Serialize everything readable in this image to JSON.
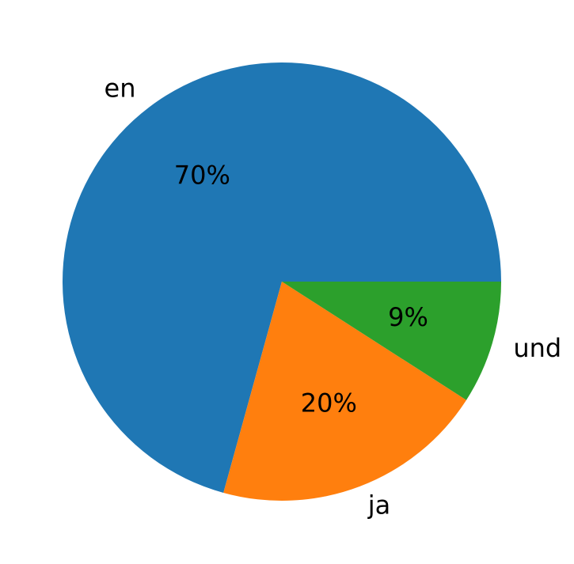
{
  "chart_data": {
    "type": "pie",
    "categories": [
      "en",
      "ja",
      "und"
    ],
    "values": [
      70,
      20,
      9
    ],
    "value_labels": [
      "70%",
      "20%",
      "9%"
    ],
    "colors": [
      "#1f77b4",
      "#ff7f0e",
      "#2ca02c"
    ]
  }
}
